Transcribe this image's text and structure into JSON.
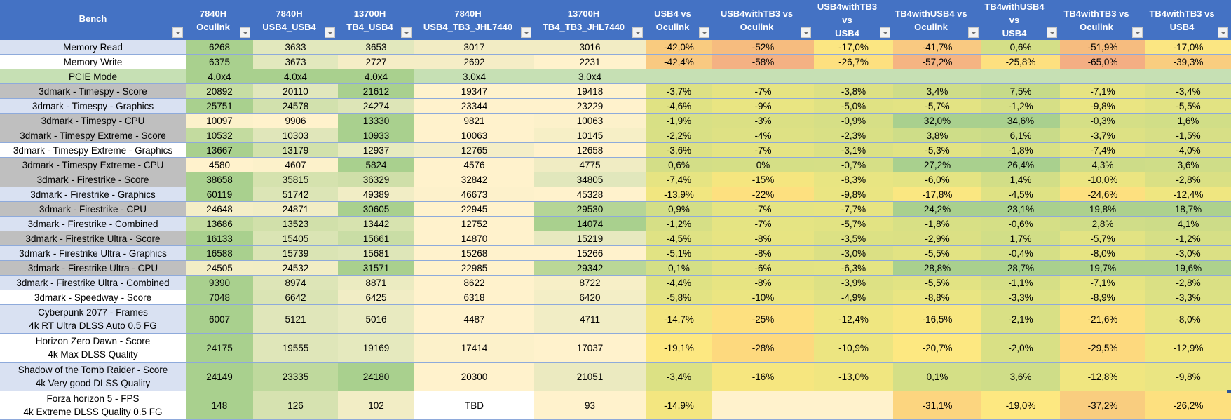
{
  "headers": [
    {
      "line1": "Bench",
      "line2": ""
    },
    {
      "line1": "7840H",
      "line2": "Oculink"
    },
    {
      "line1": "7840H",
      "line2": "USB4_USB4"
    },
    {
      "line1": "13700H",
      "line2": "TB4_USB4"
    },
    {
      "line1": "7840H",
      "line2": "USB4_TB3_JHL7440"
    },
    {
      "line1": "13700H",
      "line2": "TB4_TB3_JHL7440"
    },
    {
      "line1": "USB4 vs",
      "line2": "Oculink"
    },
    {
      "line1": "USB4withTB3 vs",
      "line2": "Oculink"
    },
    {
      "line1": "USB4withTB3 vs",
      "line2": "USB4"
    },
    {
      "line1": "TB4withUSB4 vs",
      "line2": "Oculink"
    },
    {
      "line1": "TB4withUSB4 vs",
      "line2": "USB4"
    },
    {
      "line1": "TB4withTB3 vs",
      "line2": "Oculink"
    },
    {
      "line1": "TB4withTB3 vs",
      "line2": "USB4"
    }
  ],
  "icons": {
    "filter": "dropdown-filter-icon"
  },
  "rows": [
    {
      "bench": "Memory Read",
      "sub": "",
      "bg": "#d9e1f2",
      "cells": [
        "6268",
        "3633",
        "3653",
        "3017",
        "3016",
        "-42,0%",
        "-52%",
        "-17,0%",
        "-41,7%",
        "0,6%",
        "-51,9%",
        "-17,0%"
      ],
      "colors": [
        "#a9d08e",
        "#e2e8bd",
        "#e2e8bd",
        "#f2ecc4",
        "#f2ecc4",
        "#f9cb7f",
        "#f6bc7f",
        "#fbe682",
        "#f9c981",
        "#d4df87",
        "#f6bc7f",
        "#fbe682"
      ]
    },
    {
      "bench": "Memory Write",
      "sub": "",
      "bg": "#ffffff",
      "cells": [
        "6375",
        "3673",
        "2727",
        "2692",
        "2231",
        "-42,4%",
        "-58%",
        "-26,7%",
        "-57,2%",
        "-25,8%",
        "-65,0%",
        "-39,3%"
      ],
      "colors": [
        "#a9d08e",
        "#e2e8bd",
        "#f5edc6",
        "#f5edc6",
        "#fff2cc",
        "#f9c981",
        "#f4b183",
        "#fde07f",
        "#f5b482",
        "#fde07f",
        "#f4ae83",
        "#f9cd7f"
      ]
    },
    {
      "bench": "PCIE Mode",
      "sub": "",
      "bg": "#c6e0b4",
      "cells": [
        "4.0x4",
        "4.0x4",
        "4.0x4",
        "3.0x4",
        "3.0x4",
        "",
        "",
        "",
        "",
        "",
        "",
        ""
      ],
      "colors": [
        "#a9d08e",
        "#a9d08e",
        "#a9d08e",
        "#c6e0b4",
        "#c6e0b4",
        "#c6e0b4",
        "#c6e0b4",
        "#c6e0b4",
        "#c6e0b4",
        "#c6e0b4",
        "#c6e0b4",
        "#c6e0b4"
      ]
    },
    {
      "bench": "3dmark - Timespy - Score",
      "sub": "",
      "bg": "#bfbfbf",
      "cells": [
        "20892",
        "20110",
        "21612",
        "19347",
        "19418",
        "-3,7%",
        "-7%",
        "-3,8%",
        "3,4%",
        "7,5%",
        "-7,1%",
        "-3,4%"
      ],
      "colors": [
        "#c6dda3",
        "#e1e7bc",
        "#a9d08e",
        "#fff2cc",
        "#fff2cc",
        "#dde184",
        "#e6e482",
        "#dde184",
        "#cfdd88",
        "#c6db89",
        "#e6e482",
        "#dde184"
      ]
    },
    {
      "bench": "3dmark - Timespy - Graphics",
      "sub": "",
      "bg": "#d9e1f2",
      "cells": [
        "25751",
        "24578",
        "24274",
        "23344",
        "23229",
        "-4,6%",
        "-9%",
        "-5,0%",
        "-5,7%",
        "-1,2%",
        "-9,8%",
        "-5,5%"
      ],
      "colors": [
        "#a9d08e",
        "#d2e1ad",
        "#dde5b7",
        "#fff2cc",
        "#fff2cc",
        "#e0e283",
        "#e9e582",
        "#e0e283",
        "#e3e383",
        "#d6df86",
        "#eae582",
        "#e2e383"
      ]
    },
    {
      "bench": "3dmark - Timespy - CPU",
      "sub": "",
      "bg": "#bfbfbf",
      "cells": [
        "10097",
        "9906",
        "13330",
        "9821",
        "10063",
        "-1,9%",
        "-3%",
        "-0,9%",
        "32,0%",
        "34,6%",
        "-0,3%",
        "1,6%"
      ],
      "colors": [
        "#fcf1ca",
        "#fff2cc",
        "#a9d08e",
        "#fff2cc",
        "#fcf1ca",
        "#d8e085",
        "#dbe084",
        "#d6df86",
        "#a9d08e",
        "#a9d08e",
        "#d5df86",
        "#d1de87"
      ]
    },
    {
      "bench": "3dmark - Timespy Extreme - Score",
      "sub": "",
      "bg": "#bfbfbf",
      "cells": [
        "10532",
        "10303",
        "10933",
        "10063",
        "10145",
        "-2,2%",
        "-4%",
        "-2,3%",
        "3,8%",
        "6,1%",
        "-3,7%",
        "-1,5%"
      ],
      "colors": [
        "#c3db9f",
        "#e0e6ba",
        "#a9d08e",
        "#fff2cc",
        "#f6efc6",
        "#d9e085",
        "#dee184",
        "#d9e085",
        "#cedd88",
        "#c9db89",
        "#dde184",
        "#d7df86"
      ]
    },
    {
      "bench": "3dmark - Timespy Extreme - Graphics",
      "sub": "",
      "bg": "#ffffff",
      "cells": [
        "13667",
        "13179",
        "12937",
        "12765",
        "12658",
        "-3,6%",
        "-7%",
        "-3,1%",
        "-5,3%",
        "-1,8%",
        "-7,4%",
        "-4,0%"
      ],
      "colors": [
        "#a9d08e",
        "#d2e1ab",
        "#e7eabf",
        "#f4eec7",
        "#fff2cc",
        "#dde184",
        "#e5e483",
        "#dce184",
        "#e2e383",
        "#d8e085",
        "#e6e482",
        "#dee184"
      ]
    },
    {
      "bench": "3dmark - Timespy Extreme - CPU",
      "sub": "",
      "bg": "#bfbfbf",
      "cells": [
        "4580",
        "4607",
        "5824",
        "4576",
        "4775",
        "0,6%",
        "0%",
        "-0,7%",
        "27,2%",
        "26,4%",
        "4,3%",
        "3,6%"
      ],
      "colors": [
        "#fff2cc",
        "#fcf1ca",
        "#a9d08e",
        "#fff2cc",
        "#f0ecc3",
        "#d3de87",
        "#d5df86",
        "#d6df86",
        "#a9d08e",
        "#a9d08e",
        "#cddc88",
        "#cfdd88"
      ]
    },
    {
      "bench": "3dmark - Firestrike - Score",
      "sub": "",
      "bg": "#bfbfbf",
      "cells": [
        "38658",
        "35815",
        "36329",
        "32842",
        "34805",
        "-7,4%",
        "-15%",
        "-8,3%",
        "-6,0%",
        "1,4%",
        "-10,0%",
        "-2,8%"
      ],
      "colors": [
        "#a9d08e",
        "#d5e2ae",
        "#cfdfa9",
        "#fff2cc",
        "#e1e7bc",
        "#e6e482",
        "#f5e67f",
        "#e8e582",
        "#e4e483",
        "#d2de87",
        "#ebe581",
        "#dae084"
      ]
    },
    {
      "bench": "3dmark - Firestrike - Graphics",
      "sub": "",
      "bg": "#d9e1f2",
      "cells": [
        "60119",
        "51742",
        "49389",
        "46673",
        "45328",
        "-13,9%",
        "-22%",
        "-9,8%",
        "-17,8%",
        "-4,5%",
        "-24,6%",
        "-12,4%"
      ],
      "colors": [
        "#a9d08e",
        "#dce5b6",
        "#f1edc5",
        "#fdf1cb",
        "#fff2cc",
        "#f1e680",
        "#fde07f",
        "#eae582",
        "#fae781",
        "#dfe284",
        "#fde07f",
        "#efe680"
      ]
    },
    {
      "bench": "3dmark - Firestrike - CPU",
      "sub": "",
      "bg": "#bfbfbf",
      "cells": [
        "24648",
        "24871",
        "30605",
        "22945",
        "29530",
        "0,9%",
        "-7%",
        "-7,7%",
        "24,2%",
        "23,1%",
        "19,8%",
        "18,7%"
      ],
      "colors": [
        "#f4eec7",
        "#f1edc5",
        "#a9d08e",
        "#fff2cc",
        "#b5d596",
        "#d3de87",
        "#e5e483",
        "#e7e482",
        "#a9d08e",
        "#a9d08e",
        "#add18d",
        "#add18d"
      ]
    },
    {
      "bench": "3dmark - Firestrike - Combined",
      "sub": "",
      "bg": "#d9e1f2",
      "cells": [
        "13686",
        "13523",
        "13442",
        "12752",
        "14074",
        "-1,2%",
        "-7%",
        "-5,7%",
        "-1,8%",
        "-0,6%",
        "2,8%",
        "4,1%"
      ],
      "colors": [
        "#c4dca0",
        "#d1e0aa",
        "#d7e3af",
        "#fff2cc",
        "#a9d08e",
        "#d6df86",
        "#e5e483",
        "#e2e383",
        "#d8e085",
        "#d5df86",
        "#d0dd88",
        "#cddc88"
      ]
    },
    {
      "bench": "3dmark - Firestrike Ultra - Score",
      "sub": "",
      "bg": "#bfbfbf",
      "cells": [
        "16133",
        "15405",
        "15661",
        "14870",
        "15219",
        "-4,5%",
        "-8%",
        "-3,5%",
        "-2,9%",
        "1,7%",
        "-5,7%",
        "-1,2%"
      ],
      "colors": [
        "#a9d08e",
        "#dae4b4",
        "#c9dda5",
        "#fff2cc",
        "#e7e9bf",
        "#dfe284",
        "#e7e482",
        "#dce184",
        "#dbe084",
        "#d1de87",
        "#e2e383",
        "#d6df86"
      ]
    },
    {
      "bench": "3dmark - Firestrike Ultra - Graphics",
      "sub": "",
      "bg": "#d9e1f2",
      "cells": [
        "16588",
        "15739",
        "15681",
        "15268",
        "15266",
        "-5,1%",
        "-8%",
        "-3,0%",
        "-5,5%",
        "-0,4%",
        "-8,0%",
        "-3,0%"
      ],
      "colors": [
        "#a9d08e",
        "#dae4b4",
        "#dee6b8",
        "#fff2cc",
        "#fff2cc",
        "#e1e383",
        "#e7e482",
        "#dbe084",
        "#e2e383",
        "#d5df86",
        "#e7e482",
        "#dbe084"
      ]
    },
    {
      "bench": "3dmark - Firestrike Ultra - CPU",
      "sub": "",
      "bg": "#bfbfbf",
      "cells": [
        "24505",
        "24532",
        "31571",
        "22985",
        "29342",
        "0,1%",
        "-6%",
        "-6,3%",
        "28,8%",
        "28,7%",
        "19,7%",
        "19,6%"
      ],
      "colors": [
        "#f2edc5",
        "#f1edc5",
        "#a9d08e",
        "#fff2cc",
        "#bad797",
        "#d4df86",
        "#e3e383",
        "#e4e483",
        "#a9d08e",
        "#a9d08e",
        "#add18d",
        "#add18d"
      ]
    },
    {
      "bench": "3dmark - Firestrike Ultra - Combined",
      "sub": "",
      "bg": "#d9e1f2",
      "cells": [
        "9390",
        "8974",
        "8871",
        "8622",
        "8722",
        "-4,4%",
        "-8%",
        "-3,9%",
        "-5,5%",
        "-1,1%",
        "-7,1%",
        "-2,8%"
      ],
      "colors": [
        "#a9d08e",
        "#dde5b7",
        "#ebebc1",
        "#fff2cc",
        "#f7efc7",
        "#dfe284",
        "#e7e482",
        "#dde184",
        "#e2e383",
        "#d6df86",
        "#e6e482",
        "#dae084"
      ]
    },
    {
      "bench": "3dmark - Speedway - Score",
      "sub": "",
      "bg": "#ffffff",
      "cells": [
        "7048",
        "6642",
        "6425",
        "6318",
        "6420",
        "-5,8%",
        "-10%",
        "-4,9%",
        "-8,8%",
        "-3,3%",
        "-8,9%",
        "-3,3%"
      ],
      "colors": [
        "#a9d08e",
        "#dae4b4",
        "#f1edc5",
        "#fff2cc",
        "#f3eec6",
        "#e3e383",
        "#ebe581",
        "#e0e283",
        "#e9e582",
        "#dce184",
        "#e9e582",
        "#dce184"
      ]
    },
    {
      "bench": "Cyberpunk 2077 - Frames",
      "sub": "4k RT Ultra DLSS Auto 0.5 FG",
      "bg": "#d9e1f2",
      "cells": [
        "6007",
        "5121",
        "5016",
        "4487",
        "4711",
        "-14,7%",
        "-25%",
        "-12,4%",
        "-16,5%",
        "-2,1%",
        "-21,6%",
        "-8,0%"
      ],
      "colors": [
        "#a9d08e",
        "#e0e6ba",
        "#e8eac0",
        "#fff2cc",
        "#f1edc5",
        "#f3e680",
        "#fde07f",
        "#efe680",
        "#f8e780",
        "#d9e085",
        "#fde07f",
        "#e7e482"
      ]
    },
    {
      "bench": "Horizon Zero Dawn - Score",
      "sub": "4k Max DLSS Quality",
      "bg": "#ffffff",
      "cells": [
        "24175",
        "19555",
        "19169",
        "17414",
        "17037",
        "-19,1%",
        "-28%",
        "-10,9%",
        "-20,7%",
        "-2,0%",
        "-29,5%",
        "-12,9%"
      ],
      "colors": [
        "#a9d08e",
        "#dfe6b9",
        "#e5e9be",
        "#fcf1ca",
        "#fff2cc",
        "#fde881",
        "#fdd97e",
        "#ece581",
        "#fde881",
        "#d9e085",
        "#fdd97e",
        "#f0e680"
      ]
    },
    {
      "bench": "Shadow of the Tomb Raider - Score",
      "sub": "4k Very good DLSS Quality",
      "bg": "#d9e1f2",
      "cells": [
        "24149",
        "23335",
        "24180",
        "20300",
        "21051",
        "-3,4%",
        "-16%",
        "-13,0%",
        "0,1%",
        "3,6%",
        "-12,8%",
        "-9,8%"
      ],
      "colors": [
        "#a9d08e",
        "#bfd99d",
        "#a9d08e",
        "#fff2cc",
        "#ebeac0",
        "#dce184",
        "#f6e67f",
        "#f0e680",
        "#d4df86",
        "#cfdd88",
        "#f0e680",
        "#eae582"
      ]
    },
    {
      "bench": "Forza horizon 5 - FPS",
      "sub": "4k Extreme DLSS Quality 0.5 FG",
      "bg": "#ffffff",
      "cells": [
        "148",
        "126",
        "102",
        "TBD",
        "93",
        "-14,9%",
        "",
        "",
        "-31,1%",
        "-19,0%",
        "-37,2%",
        "-26,2%"
      ],
      "colors": [
        "#a9d08e",
        "#d6e2b0",
        "#f2edc5",
        "#ffffff",
        "#fff2cc",
        "#f3e680",
        "#fff2cc",
        "#fff2cc",
        "#fcd57f",
        "#fde881",
        "#f9cd7f",
        "#fde07f"
      ]
    }
  ]
}
